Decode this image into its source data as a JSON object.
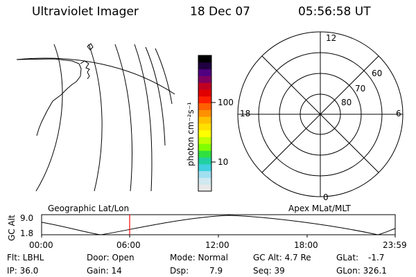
{
  "header": {
    "title": "Ultraviolet Imager",
    "date": "18 Dec 07",
    "time": "05:56:58 UT"
  },
  "colorbar": {
    "unit_label": "photon cm⁻²s⁻¹",
    "ticks": [
      "100",
      "10"
    ],
    "colors": [
      "#e8e8e8",
      "#d0e8f0",
      "#a0e0f0",
      "#40d0e0",
      "#20d0a0",
      "#30e040",
      "#80ff00",
      "#c0ff00",
      "#ffff00",
      "#ffe000",
      "#ffc000",
      "#ff9000",
      "#ff6000",
      "#ff2000",
      "#e00000",
      "#c00020",
      "#800060",
      "#500080",
      "#200040",
      "#000000"
    ]
  },
  "polar": {
    "mlt_labels": {
      "top": "12",
      "left": "18",
      "right": "6",
      "bottom": "0"
    },
    "lat_labels": [
      "60",
      "70",
      "80"
    ]
  },
  "strip": {
    "left_title": "Geographic Lat/Lon",
    "right_title": "Apex MLat/MLT",
    "y_axis_label": "GC Alt",
    "y_ticks": [
      "9.0",
      "1.8"
    ],
    "x_ticks": [
      "00:00",
      "06:00",
      "12:00",
      "18:00",
      "23:59"
    ],
    "cursor_color": "#ff0000"
  },
  "footer": {
    "flt": "Flt: LBHL",
    "ip": "IP: 36.0",
    "door": "Door: Open",
    "gain": "Gain: 14",
    "mode": "Mode: Normal",
    "dsp": "Dsp:",
    "dsp_val": "7.9",
    "gcalt": "GC Alt: 4.7 Re",
    "seq": "Seq: 39",
    "glat": "GLat:",
    "glat_val": "-1.7",
    "glon": "GLon: 326.1"
  }
}
